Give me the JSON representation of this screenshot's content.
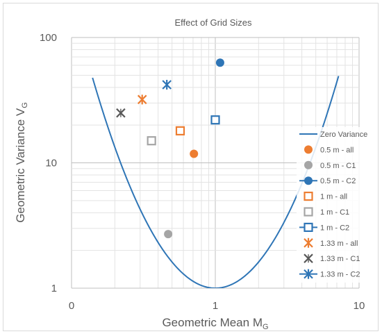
{
  "chart_data": {
    "type": "scatter",
    "title": "Effect of Grid Sizes",
    "xlabel": "Geometric Mean M",
    "xlabel_sub": "G",
    "ylabel": "Geometric Variance V",
    "ylabel_sub": "G",
    "xscale": "log",
    "yscale": "log",
    "xlim": [
      0.1,
      10
    ],
    "ylim": [
      1,
      100
    ],
    "x_ticks": [
      {
        "value": 0.1,
        "label": "0"
      },
      {
        "value": 1,
        "label": "1"
      },
      {
        "value": 10,
        "label": "10"
      }
    ],
    "y_ticks": [
      {
        "value": 1,
        "label": "1"
      },
      {
        "value": 10,
        "label": "10"
      },
      {
        "value": 100,
        "label": "100"
      }
    ],
    "grid": true,
    "legend_position": "right",
    "curve": {
      "name": "Zero Variance",
      "color": "#2e75b6",
      "relation": "V = exp((ln M)^2)",
      "x_range": [
        0.14,
        7.2
      ]
    },
    "series": [
      {
        "name": "0.5 m - all",
        "marker": "circle",
        "color": "#ed7d31",
        "points": [
          [
            0.71,
            11.8
          ]
        ]
      },
      {
        "name": "0.5 m - C1",
        "marker": "circle",
        "color": "#a5a5a5",
        "points": [
          [
            0.47,
            2.7
          ]
        ]
      },
      {
        "name": "0.5 m - C2",
        "marker": "circle",
        "color": "#2e75b6",
        "points": [
          [
            1.08,
            63
          ]
        ]
      },
      {
        "name": "1 m - all",
        "marker": "square",
        "color": "#ed7d31",
        "points": [
          [
            0.57,
            18
          ]
        ]
      },
      {
        "name": "1 m - C1",
        "marker": "square",
        "color": "#a5a5a5",
        "points": [
          [
            0.36,
            15
          ]
        ]
      },
      {
        "name": "1 m - C2",
        "marker": "square",
        "color": "#2e75b6",
        "points": [
          [
            1.0,
            22
          ]
        ]
      },
      {
        "name": "1.33 m - all",
        "marker": "star",
        "color": "#ed7d31",
        "points": [
          [
            0.31,
            32
          ]
        ]
      },
      {
        "name": "1.33 m - C1",
        "marker": "x",
        "color": "#595959",
        "points": [
          [
            0.22,
            25
          ]
        ]
      },
      {
        "name": "1.33 m - C2",
        "marker": "star",
        "color": "#2e75b6",
        "points": [
          [
            0.46,
            42
          ]
        ]
      }
    ]
  }
}
